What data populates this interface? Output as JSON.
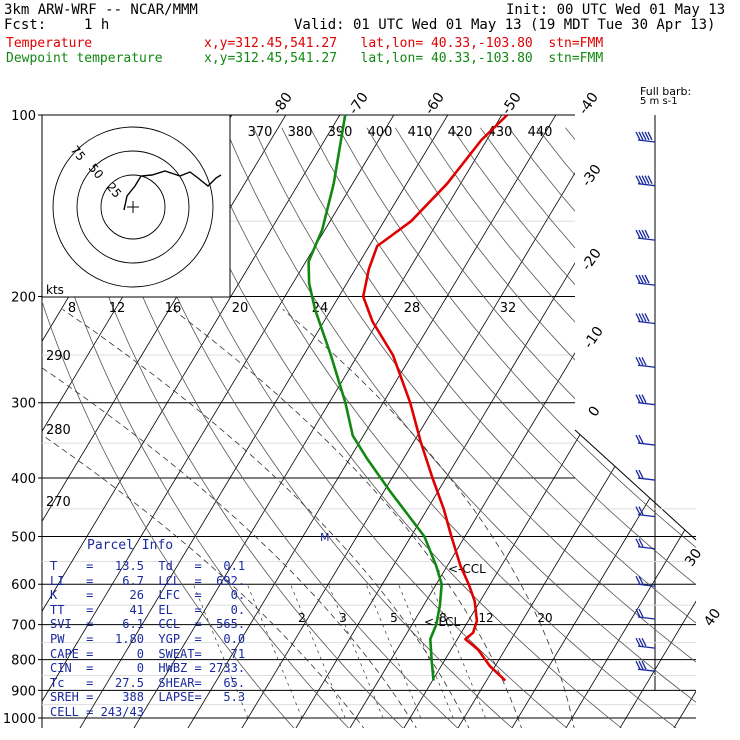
{
  "header": {
    "model": "3km ARW-WRF -- NCAR/MMM",
    "init": "Init: 00 UTC Wed 01 May 13",
    "fcst_label": "Fcst:",
    "fcst_value": "1 h",
    "valid": "Valid: 01 UTC Wed 01 May 13 (19 MDT Tue 30 Apr 13)",
    "temp_label": "Temperature",
    "temp_loc": "x,y=312.45,541.27   lat,lon= 40.33,-103.80  stn=FMM",
    "dew_label": "Dewpoint temperature",
    "dew_loc": "x,y=312.45,541.27   lat,lon= 40.33,-103.80  stn=FMM"
  },
  "colors": {
    "temperature": "#e00000",
    "dewpoint": "#118811",
    "wind": "#1a2aa0",
    "adiabat": "#555555"
  },
  "chart_data": {
    "type": "skew-t",
    "y_scale": "log pressure",
    "ylim_hpa": [
      1000,
      100
    ],
    "pressure_ticks": [
      100,
      200,
      300,
      400,
      500,
      600,
      700,
      800,
      900,
      1000
    ],
    "temperature_ticks_c": [
      -80,
      -70,
      -60,
      -50,
      -40,
      -30,
      -20,
      -10,
      0,
      30,
      40
    ],
    "theta_e_labels": [
      "370",
      "380",
      "390",
      "400",
      "410",
      "420",
      "430",
      "440"
    ],
    "mixing_ratio_top_labels": [
      "8",
      "12",
      "16",
      "20",
      "24",
      "28",
      "32"
    ],
    "mixing_ratio_low_labels": [
      "2",
      "3",
      "5",
      "8",
      "12",
      "20"
    ],
    "theta_side_labels": [
      "290",
      "280",
      "270"
    ],
    "level_markers": [
      "<-CCL",
      "<-LCL",
      "M"
    ],
    "hodograph": {
      "rings": [
        "25",
        "50",
        "75"
      ],
      "units": "kts"
    },
    "full_barb_label": "Full barb:",
    "full_barb_value": "5 m s-1",
    "temperature": [
      {
        "p": 867,
        "t": 13.5
      },
      {
        "p": 820,
        "t": 9.0
      },
      {
        "p": 770,
        "t": 5.0
      },
      {
        "p": 740,
        "t": 1.5
      },
      {
        "p": 722,
        "t": 2.2
      },
      {
        "p": 690,
        "t": 1.6
      },
      {
        "p": 640,
        "t": -1.0
      },
      {
        "p": 600,
        "t": -4.0
      },
      {
        "p": 560,
        "t": -7.5
      },
      {
        "p": 500,
        "t": -12.5
      },
      {
        "p": 450,
        "t": -17.0
      },
      {
        "p": 400,
        "t": -22.5
      },
      {
        "p": 350,
        "t": -28.5
      },
      {
        "p": 300,
        "t": -35.0
      },
      {
        "p": 250,
        "t": -43.5
      },
      {
        "p": 220,
        "t": -51.0
      },
      {
        "p": 200,
        "t": -55.5
      },
      {
        "p": 180,
        "t": -57.5
      },
      {
        "p": 165,
        "t": -58.5
      },
      {
        "p": 150,
        "t": -55.0
      },
      {
        "p": 130,
        "t": -52.5
      },
      {
        "p": 110,
        "t": -51.0
      },
      {
        "p": 100,
        "t": -49.0
      }
    ],
    "dewpoint": [
      {
        "p": 867,
        "t": 0.2
      },
      {
        "p": 800,
        "t": -2.5
      },
      {
        "p": 740,
        "t": -5.0
      },
      {
        "p": 700,
        "t": -5.5
      },
      {
        "p": 650,
        "t": -7.0
      },
      {
        "p": 600,
        "t": -9.0
      },
      {
        "p": 560,
        "t": -12.0
      },
      {
        "p": 500,
        "t": -17.5
      },
      {
        "p": 460,
        "t": -23.0
      },
      {
        "p": 420,
        "t": -29.0
      },
      {
        "p": 370,
        "t": -37.0
      },
      {
        "p": 340,
        "t": -42.0
      },
      {
        "p": 300,
        "t": -47.0
      },
      {
        "p": 250,
        "t": -55.0
      },
      {
        "p": 210,
        "t": -63.0
      },
      {
        "p": 190,
        "t": -67.0
      },
      {
        "p": 175,
        "t": -69.5
      },
      {
        "p": 155,
        "t": -70.5
      },
      {
        "p": 130,
        "t": -73.5
      },
      {
        "p": 100,
        "t": -79.0
      }
    ],
    "wind_barbs": [
      {
        "p": 110,
        "speed_m_s": 25
      },
      {
        "p": 130,
        "speed_m_s": 25
      },
      {
        "p": 160,
        "speed_m_s": 20
      },
      {
        "p": 190,
        "speed_m_s": 20
      },
      {
        "p": 220,
        "speed_m_s": 20
      },
      {
        "p": 260,
        "speed_m_s": 15
      },
      {
        "p": 300,
        "speed_m_s": 15
      },
      {
        "p": 350,
        "speed_m_s": 10
      },
      {
        "p": 400,
        "speed_m_s": 10
      },
      {
        "p": 460,
        "speed_m_s": 10
      },
      {
        "p": 520,
        "speed_m_s": 10
      },
      {
        "p": 600,
        "speed_m_s": 10
      },
      {
        "p": 680,
        "speed_m_s": 10
      },
      {
        "p": 760,
        "speed_m_s": 15
      },
      {
        "p": 830,
        "speed_m_s": 15
      }
    ]
  },
  "parcel_info": {
    "title": "Parcel Info",
    "rows": [
      {
        "l1": "T",
        "v1": "13.5",
        "l2": "Td",
        "v2": "0.1"
      },
      {
        "l1": "LI",
        "v1": "6.7",
        "l2": "LCL",
        "v2": "692."
      },
      {
        "l1": "K",
        "v1": "26",
        "l2": "LFC",
        "v2": "0."
      },
      {
        "l1": "TT",
        "v1": "41",
        "l2": "EL",
        "v2": "0."
      },
      {
        "l1": "SVI",
        "v1": "6.1",
        "l2": "CCL",
        "v2": "565."
      },
      {
        "l1": "PW",
        "v1": "1.80",
        "l2": "YGP",
        "v2": "0.0"
      },
      {
        "l1": "CAPE",
        "v1": "0",
        "l2": "SWEAT",
        "v2": "71"
      },
      {
        "l1": "CIN",
        "v1": "0",
        "l2": "HWBZ",
        "v2": "2733."
      },
      {
        "l1": "Tc",
        "v1": "27.5",
        "l2": "SHEAR",
        "v2": "65."
      },
      {
        "l1": "SREH",
        "v1": "388",
        "l2": "LAPSE",
        "v2": "5.3"
      },
      {
        "l1": "CELL",
        "v1": "243/43",
        "l2": "",
        "v2": ""
      }
    ]
  }
}
